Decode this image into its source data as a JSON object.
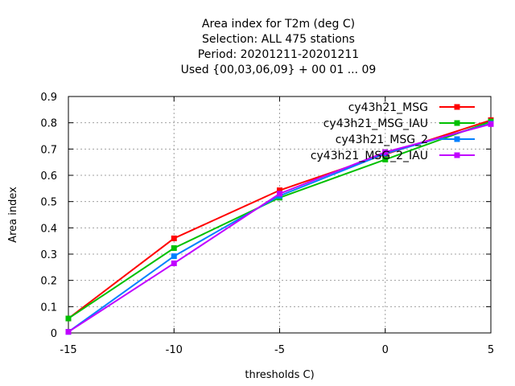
{
  "chart_data": {
    "type": "line",
    "title_lines": [
      "Area index  for T2m (deg C)",
      "Selection: ALL    475 stations",
      "Period: 20201211-20201211",
      "Used {00,03,06,09} + 00 01 ... 09"
    ],
    "xlabel": "thresholds C)",
    "ylabel": "Area index",
    "x": [
      -15,
      -10,
      -5,
      0,
      5
    ],
    "xlim": [
      -15,
      5
    ],
    "ylim": [
      0,
      0.9
    ],
    "xticks": [
      "-15",
      "-10",
      "-5",
      "0",
      "5"
    ],
    "yticks": [
      "0",
      "0.1",
      "0.2",
      "0.3",
      "0.4",
      "0.5",
      "0.6",
      "0.7",
      "0.8",
      "0.9"
    ],
    "grid": true,
    "legend_position": "top-right",
    "series": [
      {
        "name": "cy43h21_MSG",
        "color": "#ff0000",
        "values": [
          0.055,
          0.36,
          0.543,
          0.68,
          0.81
        ]
      },
      {
        "name": "cy43h21_MSG_IAU",
        "color": "#00c000",
        "values": [
          0.055,
          0.323,
          0.515,
          0.66,
          0.805
        ]
      },
      {
        "name": "cy43h21_MSG_2",
        "color": "#0080ff",
        "values": [
          0.004,
          0.292,
          0.522,
          0.683,
          0.797
        ]
      },
      {
        "name": "cy43h21_MSG_2_IAU",
        "color": "#c000ff",
        "values": [
          0.004,
          0.265,
          0.53,
          0.688,
          0.795
        ]
      }
    ]
  }
}
